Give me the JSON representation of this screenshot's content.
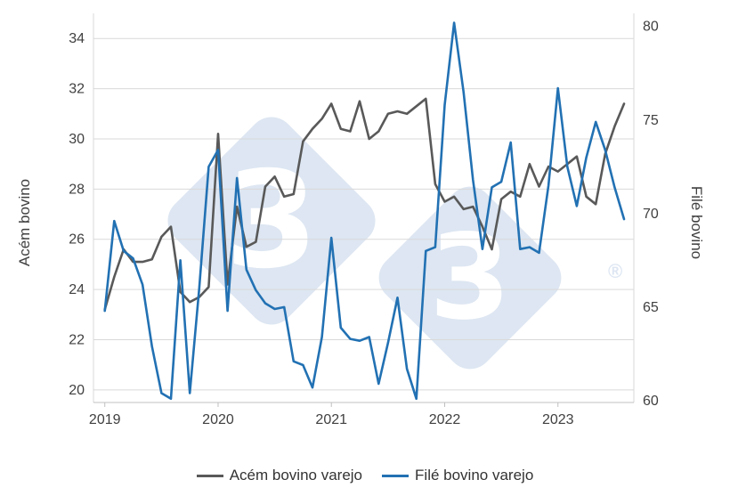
{
  "chart_data": {
    "type": "line",
    "x_start_year": 2019,
    "x_months": 56,
    "x_tick_years": [
      2019,
      2020,
      2021,
      2022,
      2023
    ],
    "grid": true,
    "legend_position": "bottom",
    "left_axis": {
      "label": "Acém bovino",
      "ticks": [
        20,
        22,
        24,
        26,
        28,
        30,
        32,
        34
      ],
      "min": 19.5,
      "max": 35.0
    },
    "right_axis": {
      "label": "Filé bovino",
      "ticks": [
        60,
        65,
        70,
        75,
        80
      ],
      "min": 59.9,
      "max": 80.7
    },
    "series": [
      {
        "name": "Acém bovino varejo",
        "axis": "left",
        "color": "#595959",
        "values": [
          23.2,
          24.5,
          25.6,
          25.1,
          25.1,
          25.2,
          26.1,
          26.5,
          23.9,
          23.5,
          23.7,
          24.1,
          30.2,
          24.2,
          27.3,
          25.7,
          25.9,
          28.1,
          28.5,
          27.7,
          27.8,
          29.9,
          30.4,
          30.8,
          31.4,
          30.4,
          30.3,
          31.5,
          30.0,
          30.3,
          31.0,
          31.1,
          31.0,
          31.3,
          31.6,
          28.2,
          27.5,
          27.7,
          27.2,
          27.3,
          26.5,
          25.6,
          27.6,
          27.9,
          27.7,
          29.0,
          28.1,
          28.9,
          28.7,
          29.0,
          29.3,
          27.7,
          27.4,
          29.4,
          30.5,
          31.4
        ]
      },
      {
        "name": "Filé bovino varejo",
        "axis": "right",
        "color": "#2271b3",
        "values": [
          64.8,
          69.6,
          68.0,
          67.6,
          66.2,
          62.9,
          60.4,
          60.1,
          67.5,
          60.4,
          66.0,
          72.5,
          73.4,
          64.8,
          71.9,
          67.0,
          65.9,
          65.2,
          64.9,
          65.0,
          62.1,
          61.9,
          60.7,
          63.4,
          68.7,
          63.9,
          63.3,
          63.2,
          63.4,
          60.9,
          63.1,
          65.5,
          61.7,
          60.1,
          68.0,
          68.2,
          75.8,
          80.2,
          76.5,
          71.8,
          68.1,
          71.4,
          71.7,
          73.8,
          68.1,
          68.2,
          67.9,
          71.5,
          76.7,
          72.5,
          70.4,
          73.0,
          74.9,
          73.4,
          71.4,
          69.7
        ]
      }
    ],
    "colors": {
      "gridline": "#d9d9d9",
      "axis_line": "#c0c0c0",
      "tick_text": "#404040",
      "watermark": "#dde6f2"
    }
  },
  "watermark": {
    "glyphs": [
      "3",
      "3"
    ],
    "registered": "®"
  }
}
